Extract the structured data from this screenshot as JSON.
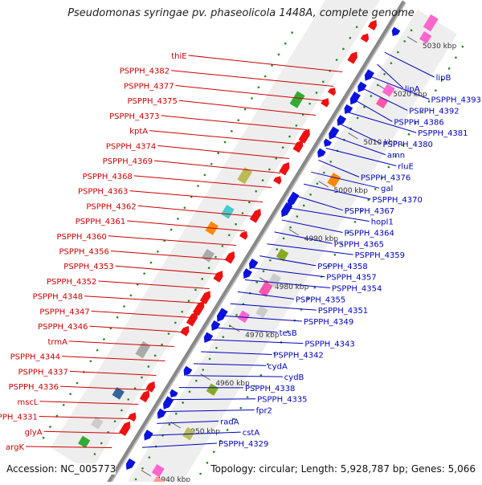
{
  "title": "Pseudomonas syringae pv. phaseolicola 1448A, complete genome",
  "footer": {
    "accession": "Accession: NC_005773",
    "summary": "Topology: circular; Length: 5,928,787 bp; Genes: 5,066"
  },
  "colors": {
    "forward_label": "#cc0000",
    "reverse_label": "#0000bb",
    "forward_gene": "#ee1111",
    "reverse_gene": "#0a12dd",
    "backbone": "#888888",
    "tick_dots": "#228822"
  },
  "scale": {
    "unit": "kbp",
    "ticks": [
      {
        "kbp": 4940,
        "label": "4940 kbp"
      },
      {
        "kbp": 4950,
        "label": "4950 kbp"
      },
      {
        "kbp": 4960,
        "label": "4960 kbp"
      },
      {
        "kbp": 4970,
        "label": "4970 kbp"
      },
      {
        "kbp": 4980,
        "label": "4980 kbp"
      },
      {
        "kbp": 4990,
        "label": "4990 kbp"
      },
      {
        "kbp": 5000,
        "label": "5000 kbp"
      },
      {
        "kbp": 5010,
        "label": "5010 kbp"
      },
      {
        "kbp": 5020,
        "label": "5020 kbp"
      },
      {
        "kbp": 5030,
        "label": "5030 kbp"
      }
    ]
  },
  "forward_labels": [
    "argK",
    "glyA",
    "PSPPH_4331",
    "mscL",
    "PSPPH_4336",
    "PSPPH_4337",
    "PSPPH_4344",
    "trmA",
    "PSPPH_4346",
    "PSPPH_4347",
    "PSPPH_4348",
    "PSPPH_4352",
    "PSPPH_4353",
    "PSPPH_4356",
    "PSPPH_4360",
    "PSPPH_4361",
    "PSPPH_4362",
    "PSPPH_4363",
    "PSPPH_4368",
    "PSPPH_4369",
    "PSPPH_4374",
    "kptA",
    "PSPPH_4373",
    "PSPPH_4375",
    "PSPPH_4377",
    "PSPPH_4382",
    "thiE"
  ],
  "reverse_labels": [
    "PSPPH_4329",
    "cstA",
    "radA",
    "fpr2",
    "PSPPH_4335",
    "PSPPH_4338",
    "cydB",
    "cydA",
    "PSPPH_4342",
    "PSPPH_4343",
    "tesB",
    "PSPPH_4349",
    "PSPPH_4351",
    "PSPPH_4355",
    "PSPPH_4354",
    "PSPPH_4357",
    "PSPPH_4358",
    "PSPPH_4359",
    "PSPPH_4365",
    "PSPPH_4364",
    "hopI1",
    "PSPPH_4367",
    "PSPPH_4370",
    "gal",
    "PSPPH_4376",
    "rluE",
    "amn",
    "PSPPH_4380",
    "PSPPH_4381",
    "PSPPH_4386",
    "PSPPH_4392",
    "PSPPH_4393",
    "lipA",
    "lipB"
  ]
}
